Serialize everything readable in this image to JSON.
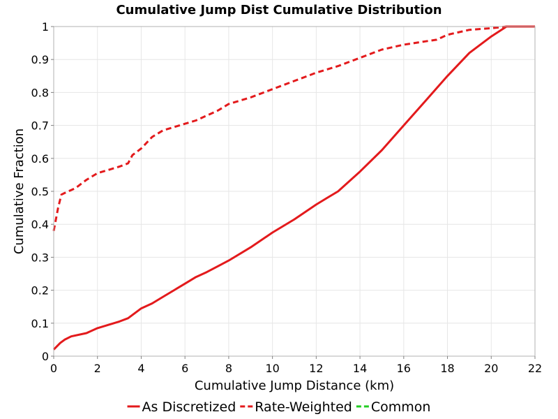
{
  "chart_data": {
    "type": "line",
    "title": "Cumulative Jump Dist Cumulative Distribution",
    "xlabel": "Cumulative Jump Distance (km)",
    "ylabel": "Cumulative Fraction",
    "xlim": [
      0,
      22
    ],
    "ylim": [
      0,
      1
    ],
    "xticks": [
      0,
      2,
      4,
      6,
      8,
      10,
      12,
      14,
      16,
      18,
      20,
      22
    ],
    "yticks": [
      0,
      0.1,
      0.2,
      0.3,
      0.4,
      0.5,
      0.6,
      0.7,
      0.8,
      0.9,
      1
    ],
    "xtick_labels": [
      "0",
      "2",
      "4",
      "6",
      "8",
      "10",
      "12",
      "14",
      "16",
      "18",
      "20",
      "22"
    ],
    "ytick_labels": [
      "0",
      "0.1",
      "0.2",
      "0.3",
      "0.4",
      "0.5",
      "0.6",
      "0.7",
      "0.8",
      "0.9",
      "1"
    ],
    "grid": true,
    "legend_position": "bottom",
    "series": [
      {
        "name": "As Discretized",
        "color": "#e31a1c",
        "style": "solid",
        "x": [
          0,
          0.3,
          0.5,
          0.8,
          1.5,
          2,
          2.5,
          3,
          3.4,
          4,
          4.5,
          5,
          5.5,
          6,
          6.5,
          7,
          8,
          9,
          10,
          11,
          12,
          12.5,
          13,
          14,
          15,
          16,
          17,
          18,
          19,
          20,
          20.7,
          22
        ],
        "y": [
          0.02,
          0.04,
          0.05,
          0.06,
          0.07,
          0.085,
          0.095,
          0.105,
          0.115,
          0.145,
          0.16,
          0.18,
          0.2,
          0.22,
          0.24,
          0.255,
          0.29,
          0.33,
          0.375,
          0.415,
          0.46,
          0.48,
          0.5,
          0.56,
          0.625,
          0.7,
          0.775,
          0.85,
          0.92,
          0.97,
          1.0,
          1.0
        ]
      },
      {
        "name": "Rate-Weighted",
        "color": "#e31a1c",
        "style": "dashed",
        "x": [
          0,
          0.2,
          0.35,
          0.5,
          1,
          1.5,
          2,
          2.5,
          3,
          3.4,
          3.6,
          4,
          4.5,
          5,
          6,
          6.5,
          7,
          7.5,
          8,
          9,
          10,
          11,
          12,
          13,
          14,
          15,
          16,
          17,
          17.5,
          18,
          19,
          20,
          20.7,
          22
        ],
        "y": [
          0.38,
          0.45,
          0.49,
          0.495,
          0.51,
          0.535,
          0.555,
          0.565,
          0.575,
          0.585,
          0.61,
          0.63,
          0.665,
          0.685,
          0.705,
          0.715,
          0.73,
          0.745,
          0.765,
          0.785,
          0.81,
          0.835,
          0.86,
          0.88,
          0.905,
          0.93,
          0.945,
          0.955,
          0.96,
          0.975,
          0.99,
          0.995,
          1.0,
          1.0
        ]
      },
      {
        "name": "Common",
        "color": "#22cc22",
        "style": "dashed",
        "x": [],
        "y": []
      }
    ]
  }
}
